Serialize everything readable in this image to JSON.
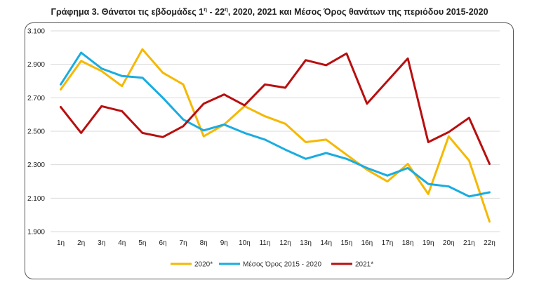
{
  "title": {
    "prefix": "Γράφημα 3. Θάνατοι τις εβδομάδες 1",
    "sup1": "η",
    "mid": " - 22",
    "sup2": "η",
    "suffix": ", 2020, 2021 και Μέσος Όρος θανάτων της περιόδου 2015-2020"
  },
  "chart_data": {
    "type": "line",
    "title": "Γράφημα 3. Θάνατοι τις εβδομάδες 1η - 22η, 2020, 2021 και Μέσος Όρος θανάτων της περιόδου 2015-2020",
    "categories": [
      "1η",
      "2η",
      "3η",
      "4η",
      "5η",
      "6η",
      "7η",
      "8η",
      "9η",
      "10η",
      "11η",
      "12η",
      "13η",
      "14η",
      "15η",
      "16η",
      "17η",
      "18η",
      "19η",
      "20η",
      "21η",
      "22η"
    ],
    "ylim": [
      1900,
      3100
    ],
    "yticks": [
      1900,
      2100,
      2300,
      2500,
      2700,
      2900,
      3100
    ],
    "ytick_labels": [
      "1.900",
      "2.100",
      "2.300",
      "2.500",
      "2.700",
      "2.900",
      "3.100"
    ],
    "grid": true,
    "legend_position": "bottom",
    "series": [
      {
        "name": "2020*",
        "color": "#F5B800",
        "values": [
          2750,
          2920,
          2860,
          2770,
          2990,
          2850,
          2780,
          2470,
          2540,
          2650,
          2590,
          2545,
          2435,
          2450,
          2360,
          2270,
          2200,
          2305,
          2125,
          2470,
          2325,
          1960
        ]
      },
      {
        "name": "Μέσος Όρος 2015 - 2020",
        "color": "#1AACE0",
        "values": [
          2780,
          2970,
          2875,
          2830,
          2820,
          2700,
          2570,
          2505,
          2540,
          2490,
          2450,
          2390,
          2335,
          2370,
          2335,
          2280,
          2235,
          2280,
          2185,
          2170,
          2110,
          2135
        ]
      },
      {
        "name": "2021*",
        "color": "#B80F0F",
        "values": [
          2645,
          2490,
          2650,
          2620,
          2490,
          2465,
          2530,
          2665,
          2720,
          2655,
          2780,
          2760,
          2925,
          2895,
          2965,
          2665,
          2800,
          2935,
          2435,
          2495,
          2580,
          2305
        ]
      }
    ]
  }
}
